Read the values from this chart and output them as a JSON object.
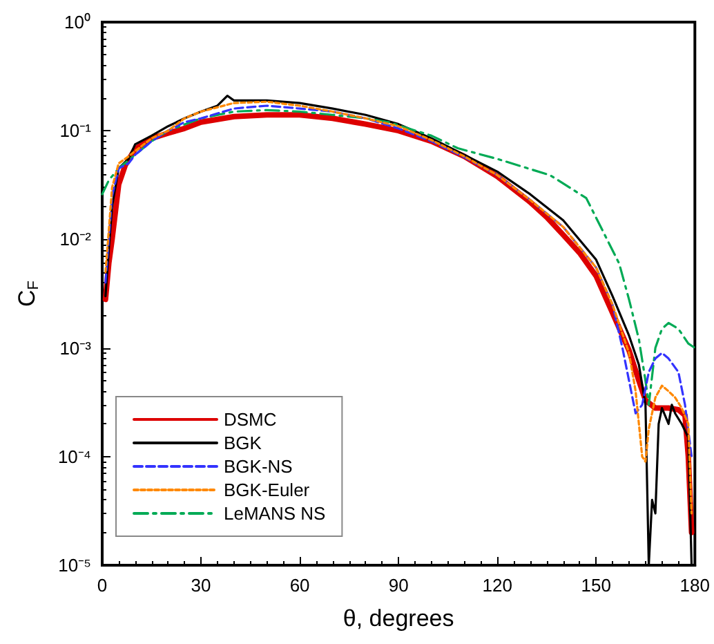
{
  "chart_data": {
    "type": "line",
    "xlabel": "θ, degrees",
    "ylabel": "C$_{F}$",
    "log": "y",
    "grid": false,
    "legend": "bottom left",
    "marker": "none",
    "xlim": [
      0,
      180
    ],
    "xticks": [
      0,
      30,
      60,
      90,
      120,
      150,
      180
    ],
    "ylim": [
      1e-05,
      1
    ],
    "yticks": [
      {
        "value": 1e-05,
        "label": "10⁻⁵"
      },
      {
        "value": 0.0001,
        "label": "10⁻⁴"
      },
      {
        "value": 0.001,
        "label": "10⁻³"
      },
      {
        "value": 0.01,
        "label": "10⁻²"
      },
      {
        "value": 0.1,
        "label": "10⁻¹"
      },
      {
        "value": 1,
        "label": "10⁰"
      }
    ],
    "series": [
      {
        "name": "DSMC",
        "color": "#dd0000",
        "line_style": "solid",
        "x": [
          1,
          2,
          3,
          5,
          7,
          10,
          15,
          20,
          25,
          30,
          40,
          50,
          60,
          70,
          80,
          90,
          100,
          110,
          120,
          130,
          135,
          140,
          145,
          150,
          155,
          160,
          163,
          165,
          168,
          172,
          175,
          177,
          178,
          179
        ],
        "values": [
          0.0028,
          0.006,
          0.01,
          0.032,
          0.048,
          0.068,
          0.085,
          0.095,
          0.105,
          0.12,
          0.135,
          0.14,
          0.14,
          0.13,
          0.115,
          0.1,
          0.08,
          0.058,
          0.038,
          0.022,
          0.016,
          0.011,
          0.0075,
          0.0046,
          0.0021,
          0.00095,
          0.0005,
          0.00033,
          0.00028,
          0.00028,
          0.00027,
          0.00024,
          0.0001,
          2e-05
        ]
      },
      {
        "name": "BGK",
        "color": "#000000",
        "line_style": "solid",
        "x": [
          1,
          2,
          3,
          5,
          8,
          10,
          15,
          20,
          25,
          30,
          35,
          38,
          40,
          50,
          60,
          70,
          80,
          90,
          100,
          110,
          120,
          130,
          140,
          150,
          155,
          160,
          163,
          165,
          166,
          167,
          168,
          169,
          170,
          172,
          173,
          174,
          176,
          178,
          179
        ],
        "values": [
          0.003,
          0.008,
          0.02,
          0.045,
          0.055,
          0.075,
          0.09,
          0.11,
          0.13,
          0.15,
          0.17,
          0.21,
          0.19,
          0.19,
          0.18,
          0.16,
          0.14,
          0.115,
          0.085,
          0.06,
          0.042,
          0.026,
          0.015,
          0.0065,
          0.003,
          0.0013,
          0.0007,
          0.0003,
          1e-05,
          4e-05,
          3e-05,
          0.0002,
          0.00028,
          0.0002,
          0.0003,
          0.00025,
          0.0002,
          0.00015,
          1e-05
        ]
      },
      {
        "name": "BGK-NS",
        "color": "#3333ff",
        "line_style": "dashed",
        "x": [
          1,
          2,
          3,
          5,
          8,
          10,
          15,
          20,
          25,
          30,
          40,
          50,
          60,
          70,
          80,
          90,
          100,
          110,
          120,
          130,
          140,
          150,
          155,
          158,
          160,
          162,
          164,
          166,
          168,
          170,
          172,
          175,
          177,
          179
        ],
        "values": [
          0.004,
          0.01,
          0.025,
          0.045,
          0.05,
          0.06,
          0.08,
          0.1,
          0.12,
          0.13,
          0.16,
          0.17,
          0.16,
          0.15,
          0.13,
          0.105,
          0.08,
          0.057,
          0.039,
          0.023,
          0.013,
          0.0055,
          0.0025,
          0.001,
          0.0005,
          0.00025,
          0.0003,
          0.0006,
          0.0008,
          0.0009,
          0.0008,
          0.0006,
          0.0003,
          0.0001
        ]
      },
      {
        "name": "BGK-Euler",
        "color": "#ff8800",
        "line_style": "dotted",
        "x": [
          1,
          2,
          3,
          5,
          8,
          10,
          15,
          20,
          25,
          30,
          40,
          50,
          60,
          70,
          80,
          90,
          100,
          110,
          120,
          130,
          140,
          150,
          155,
          160,
          162,
          164,
          165,
          166,
          168,
          170,
          172,
          174,
          176,
          178,
          179
        ],
        "values": [
          0.005,
          0.012,
          0.03,
          0.05,
          0.058,
          0.065,
          0.085,
          0.1,
          0.13,
          0.15,
          0.18,
          0.185,
          0.17,
          0.15,
          0.13,
          0.11,
          0.082,
          0.058,
          0.039,
          0.023,
          0.013,
          0.0055,
          0.0025,
          0.0009,
          0.0004,
          0.0001,
          9e-05,
          0.00018,
          0.00035,
          0.00045,
          0.0004,
          0.00035,
          0.00028,
          0.0002,
          3e-05
        ]
      },
      {
        "name": "LeMANS NS",
        "color": "#00aa55",
        "line_style": "dashdot",
        "x": [
          0,
          2,
          5,
          10,
          15,
          20,
          30,
          40,
          50,
          60,
          70,
          80,
          87,
          100,
          108,
          120,
          136,
          147,
          152,
          157,
          160,
          163,
          165,
          166,
          168,
          170,
          172,
          175,
          178,
          180
        ],
        "values": [
          0.026,
          0.035,
          0.045,
          0.06,
          0.08,
          0.1,
          0.13,
          0.15,
          0.155,
          0.15,
          0.14,
          0.13,
          0.12,
          0.09,
          0.069,
          0.055,
          0.039,
          0.024,
          0.012,
          0.006,
          0.0028,
          0.0012,
          0.0005,
          0.0003,
          0.001,
          0.0015,
          0.0017,
          0.0015,
          0.0011,
          0.001
        ]
      }
    ]
  }
}
